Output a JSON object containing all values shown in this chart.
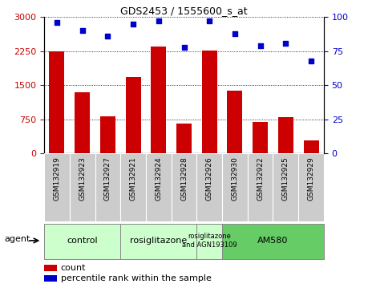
{
  "title": "GDS2453 / 1555600_s_at",
  "samples": [
    "GSM132919",
    "GSM132923",
    "GSM132927",
    "GSM132921",
    "GSM132924",
    "GSM132928",
    "GSM132926",
    "GSM132930",
    "GSM132922",
    "GSM132925",
    "GSM132929"
  ],
  "counts": [
    2250,
    1350,
    820,
    1680,
    2350,
    650,
    2270,
    1380,
    700,
    790,
    290
  ],
  "percentiles": [
    96,
    90,
    86,
    95,
    97,
    78,
    97,
    88,
    79,
    81,
    68
  ],
  "bar_color": "#cc0000",
  "dot_color": "#0000cc",
  "ylim_left": [
    0,
    3000
  ],
  "ylim_right": [
    0,
    100
  ],
  "yticks_left": [
    0,
    750,
    1500,
    2250,
    3000
  ],
  "yticks_right": [
    0,
    25,
    50,
    75,
    100
  ],
  "grid_style": "dotted",
  "groups": [
    {
      "label": "control",
      "start": 0,
      "end": 3,
      "color": "#ccffcc"
    },
    {
      "label": "rosiglitazone",
      "start": 3,
      "end": 6,
      "color": "#ccffcc"
    },
    {
      "label": "rosiglitazone\nand AGN193109",
      "start": 6,
      "end": 7,
      "color": "#ccffcc"
    },
    {
      "label": "AM580",
      "start": 7,
      "end": 11,
      "color": "#66cc66"
    }
  ],
  "agent_label": "agent",
  "legend_count_label": "count",
  "legend_pct_label": "percentile rank within the sample",
  "tick_bg_color": "#cccccc"
}
